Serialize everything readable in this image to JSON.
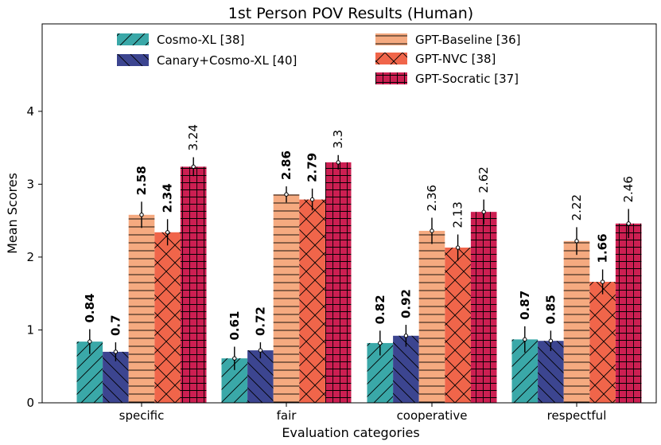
{
  "chart_data": {
    "type": "bar",
    "title": "1st Person POV Results (Human)",
    "xlabel": "Evaluation categories",
    "ylabel": "Mean Scores",
    "ylim": [
      0,
      5.2
    ],
    "yticks": [
      0,
      1,
      2,
      3,
      4
    ],
    "grid": false,
    "legend_position": "top",
    "categories": [
      "specific",
      "fair",
      "cooperative",
      "respectful"
    ],
    "series": [
      {
        "name": "Cosmo-XL [38]",
        "color": "#3aa8a8",
        "hatch": "diag",
        "bold_labels": true,
        "values": [
          0.84,
          0.61,
          0.82,
          0.87
        ],
        "errors": [
          0.17,
          0.16,
          0.17,
          0.18
        ]
      },
      {
        "name": "Canary+Cosmo-XL [40]",
        "color": "#3c4590",
        "hatch": "backdiag",
        "bold_labels": true,
        "values": [
          0.7,
          0.72,
          0.92,
          0.85
        ],
        "errors": [
          0.13,
          0.11,
          0.15,
          0.14
        ]
      },
      {
        "name": "GPT-Baseline [36]",
        "color": "#f5aa80",
        "hatch": "horiz",
        "bold_labels": [
          true,
          true,
          false,
          false
        ],
        "values": [
          2.58,
          2.86,
          2.36,
          2.22
        ],
        "errors": [
          0.18,
          0.11,
          0.18,
          0.19
        ]
      },
      {
        "name": "GPT-NVC [38]",
        "color": "#f0654a",
        "hatch": "cross",
        "bold_labels": [
          true,
          true,
          false,
          true
        ],
        "values": [
          2.34,
          2.79,
          2.13,
          1.66
        ],
        "errors": [
          0.18,
          0.15,
          0.18,
          0.17
        ]
      },
      {
        "name": "GPT-Socratic [37]",
        "color": "#cc1f52",
        "hatch": "grid",
        "bold_labels": false,
        "values": [
          3.24,
          3.3,
          2.62,
          2.46
        ],
        "errors": [
          0.13,
          0.1,
          0.17,
          0.2
        ]
      }
    ],
    "value_labels": [
      [
        "0.84",
        "0.61",
        "0.82",
        "0.87"
      ],
      [
        "0.7",
        "0.72",
        "0.92",
        "0.85"
      ],
      [
        "2.58",
        "2.86",
        "2.36",
        "2.22"
      ],
      [
        "2.34",
        "2.79",
        "2.13",
        "1.66"
      ],
      [
        "3.24",
        "3.3",
        "2.62",
        "2.46"
      ]
    ]
  }
}
